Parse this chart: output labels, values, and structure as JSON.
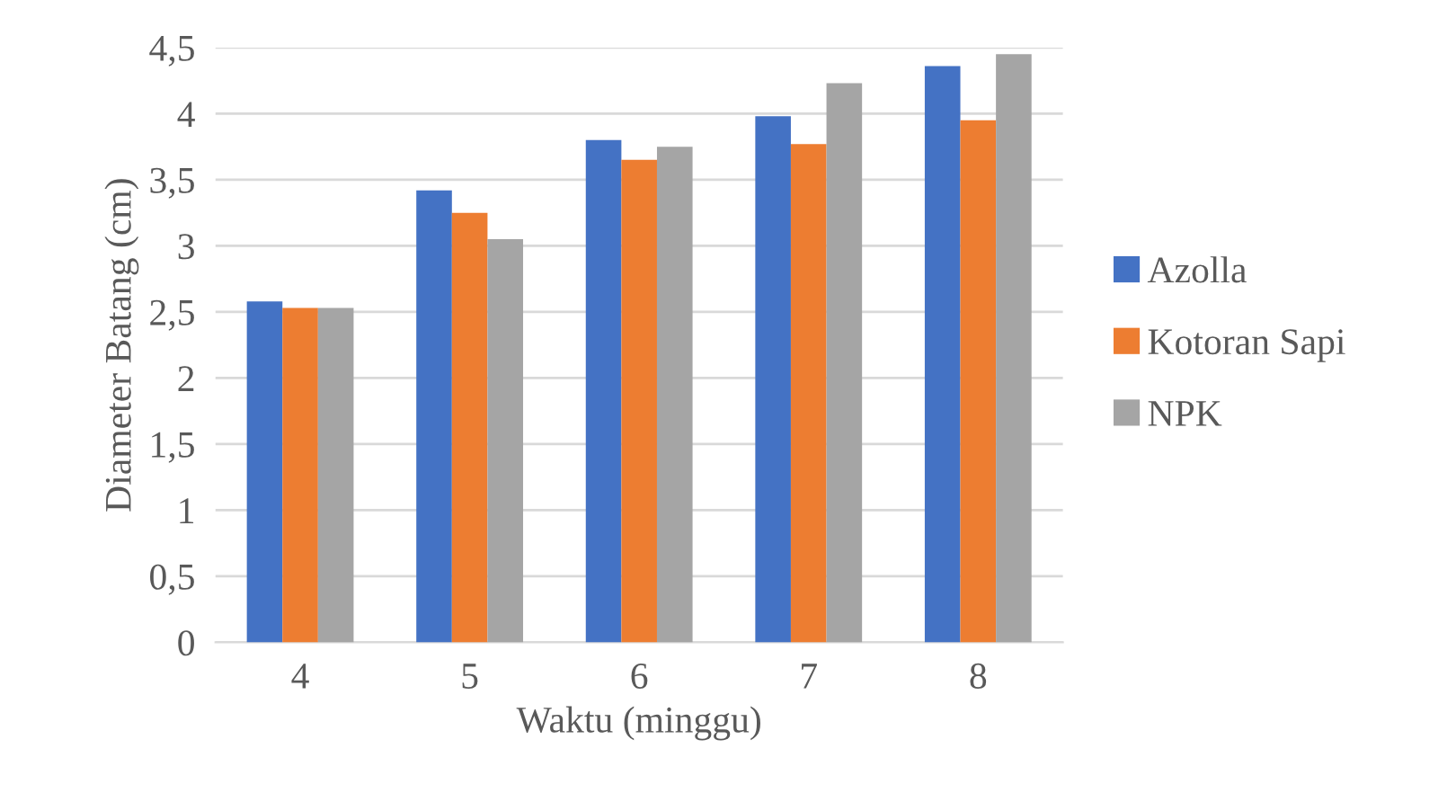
{
  "chart_data": {
    "type": "bar",
    "xlabel": "Waktu (minggu)",
    "ylabel": "Diameter Batang (cm)",
    "categories": [
      "4",
      "5",
      "6",
      "7",
      "8"
    ],
    "series": [
      {
        "name": "Azolla",
        "color": "#4472c4",
        "values": [
          2.58,
          3.42,
          3.8,
          3.98,
          4.36
        ]
      },
      {
        "name": "Kotoran Sapi",
        "color": "#ed7d31",
        "values": [
          2.53,
          3.25,
          3.65,
          3.77,
          3.95
        ]
      },
      {
        "name": "NPK",
        "color": "#a5a5a5",
        "values": [
          2.53,
          3.05,
          3.75,
          4.23,
          4.45
        ]
      }
    ],
    "ylim": [
      0,
      4.5
    ],
    "yticks": [
      {
        "value": 0,
        "label": "0"
      },
      {
        "value": 0.5,
        "label": "0,5"
      },
      {
        "value": 1,
        "label": "1"
      },
      {
        "value": 1.5,
        "label": "1,5"
      },
      {
        "value": 2,
        "label": "2"
      },
      {
        "value": 2.5,
        "label": "2,5"
      },
      {
        "value": 3,
        "label": "3"
      },
      {
        "value": 3.5,
        "label": "3,5"
      },
      {
        "value": 4,
        "label": "4"
      },
      {
        "value": 4.5,
        "label": "4,5"
      }
    ],
    "grid": "y",
    "legend": "right"
  }
}
